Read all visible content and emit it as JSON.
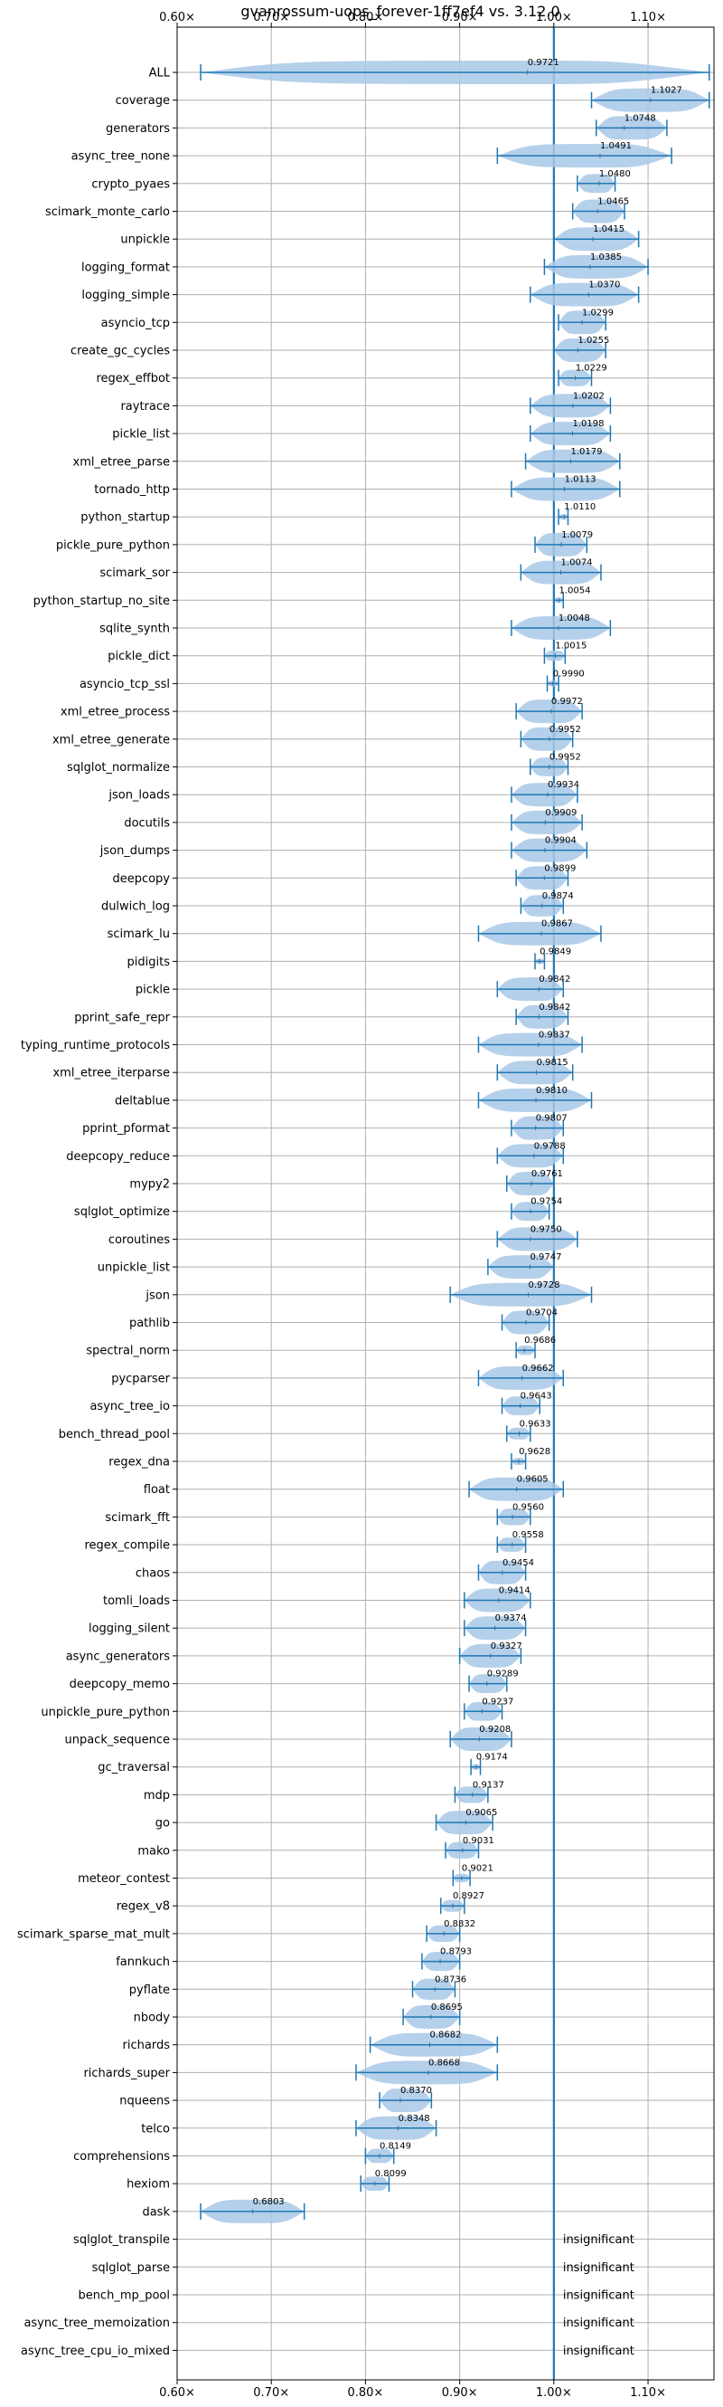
{
  "chart_data": {
    "type": "violin",
    "title": "gvanrossum-uops_forever-1ff7ef4 vs. 3.12.0",
    "xlim": [
      0.6,
      1.17
    ],
    "x_ticks": [
      {
        "value": 0.6,
        "label": "0.60×"
      },
      {
        "value": 0.7,
        "label": "0.70×"
      },
      {
        "value": 0.8,
        "label": "0.80×"
      },
      {
        "value": 0.9,
        "label": "0.90×"
      },
      {
        "value": 1.0,
        "label": "1.00×"
      },
      {
        "value": 1.1,
        "label": "1.10×"
      }
    ],
    "reference_line": 1.0,
    "grid": true,
    "colors": {
      "accent": "#1f77b4",
      "violin_fill": "#a8c8e6",
      "grid": "#b0b0b0"
    },
    "benchmarks": [
      {
        "name": "ALL",
        "value": 0.9721,
        "label": "0.9721",
        "min": 0.625,
        "max": 1.165
      },
      {
        "name": "coverage",
        "value": 1.1027,
        "label": "1.1027",
        "min": 1.04,
        "max": 1.165
      },
      {
        "name": "generators",
        "value": 1.0748,
        "label": "1.0748",
        "min": 1.045,
        "max": 1.12
      },
      {
        "name": "async_tree_none",
        "value": 1.0491,
        "label": "1.0491",
        "min": 0.94,
        "max": 1.125
      },
      {
        "name": "crypto_pyaes",
        "value": 1.048,
        "label": "1.0480",
        "min": 1.025,
        "max": 1.065
      },
      {
        "name": "scimark_monte_carlo",
        "value": 1.0465,
        "label": "1.0465",
        "min": 1.02,
        "max": 1.075
      },
      {
        "name": "unpickle",
        "value": 1.0415,
        "label": "1.0415",
        "min": 1.0,
        "max": 1.09
      },
      {
        "name": "logging_format",
        "value": 1.0385,
        "label": "1.0385",
        "min": 0.99,
        "max": 1.1
      },
      {
        "name": "logging_simple",
        "value": 1.037,
        "label": "1.0370",
        "min": 0.975,
        "max": 1.09
      },
      {
        "name": "asyncio_tcp",
        "value": 1.0299,
        "label": "1.0299",
        "min": 1.005,
        "max": 1.055
      },
      {
        "name": "create_gc_cycles",
        "value": 1.0255,
        "label": "1.0255",
        "min": 1.0,
        "max": 1.055
      },
      {
        "name": "regex_effbot",
        "value": 1.0229,
        "label": "1.0229",
        "min": 1.005,
        "max": 1.04
      },
      {
        "name": "raytrace",
        "value": 1.0202,
        "label": "1.0202",
        "min": 0.975,
        "max": 1.06
      },
      {
        "name": "pickle_list",
        "value": 1.0198,
        "label": "1.0198",
        "min": 0.975,
        "max": 1.06
      },
      {
        "name": "xml_etree_parse",
        "value": 1.0179,
        "label": "1.0179",
        "min": 0.97,
        "max": 1.07
      },
      {
        "name": "tornado_http",
        "value": 1.0113,
        "label": "1.0113",
        "min": 0.955,
        "max": 1.07
      },
      {
        "name": "python_startup",
        "value": 1.011,
        "label": "1.0110",
        "min": 1.005,
        "max": 1.015
      },
      {
        "name": "pickle_pure_python",
        "value": 1.0079,
        "label": "1.0079",
        "min": 0.98,
        "max": 1.035
      },
      {
        "name": "scimark_sor",
        "value": 1.0074,
        "label": "1.0074",
        "min": 0.965,
        "max": 1.05
      },
      {
        "name": "python_startup_no_site",
        "value": 1.0054,
        "label": "1.0054",
        "min": 1.0,
        "max": 1.01
      },
      {
        "name": "sqlite_synth",
        "value": 1.0048,
        "label": "1.0048",
        "min": 0.955,
        "max": 1.06
      },
      {
        "name": "pickle_dict",
        "value": 1.0015,
        "label": "1.0015",
        "min": 0.99,
        "max": 1.012
      },
      {
        "name": "asyncio_tcp_ssl",
        "value": 0.999,
        "label": "0.9990",
        "min": 0.993,
        "max": 1.005
      },
      {
        "name": "xml_etree_process",
        "value": 0.9972,
        "label": "0.9972",
        "min": 0.96,
        "max": 1.03
      },
      {
        "name": "xml_etree_generate",
        "value": 0.9952,
        "label": "0.9952",
        "min": 0.965,
        "max": 1.02
      },
      {
        "name": "sqlglot_normalize",
        "value": 0.9952,
        "label": "0.9952",
        "min": 0.975,
        "max": 1.015
      },
      {
        "name": "json_loads",
        "value": 0.9934,
        "label": "0.9934",
        "min": 0.955,
        "max": 1.025
      },
      {
        "name": "docutils",
        "value": 0.9909,
        "label": "0.9909",
        "min": 0.955,
        "max": 1.03
      },
      {
        "name": "json_dumps",
        "value": 0.9904,
        "label": "0.9904",
        "min": 0.955,
        "max": 1.035
      },
      {
        "name": "deepcopy",
        "value": 0.9899,
        "label": "0.9899",
        "min": 0.96,
        "max": 1.015
      },
      {
        "name": "dulwich_log",
        "value": 0.9874,
        "label": "0.9874",
        "min": 0.965,
        "max": 1.01
      },
      {
        "name": "scimark_lu",
        "value": 0.9867,
        "label": "0.9867",
        "min": 0.92,
        "max": 1.05
      },
      {
        "name": "pidigits",
        "value": 0.9849,
        "label": "0.9849",
        "min": 0.98,
        "max": 0.99
      },
      {
        "name": "pickle",
        "value": 0.9842,
        "label": "0.9842",
        "min": 0.94,
        "max": 1.01
      },
      {
        "name": "pprint_safe_repr",
        "value": 0.9842,
        "label": "0.9842",
        "min": 0.96,
        "max": 1.015
      },
      {
        "name": "typing_runtime_protocols",
        "value": 0.9837,
        "label": "0.9837",
        "min": 0.92,
        "max": 1.03
      },
      {
        "name": "xml_etree_iterparse",
        "value": 0.9815,
        "label": "0.9815",
        "min": 0.94,
        "max": 1.02
      },
      {
        "name": "deltablue",
        "value": 0.981,
        "label": "0.9810",
        "min": 0.92,
        "max": 1.04
      },
      {
        "name": "pprint_pformat",
        "value": 0.9807,
        "label": "0.9807",
        "min": 0.955,
        "max": 1.01
      },
      {
        "name": "deepcopy_reduce",
        "value": 0.9788,
        "label": "0.9788",
        "min": 0.94,
        "max": 1.01
      },
      {
        "name": "mypy2",
        "value": 0.9761,
        "label": "0.9761",
        "min": 0.95,
        "max": 1.0
      },
      {
        "name": "sqlglot_optimize",
        "value": 0.9754,
        "label": "0.9754",
        "min": 0.955,
        "max": 0.995
      },
      {
        "name": "coroutines",
        "value": 0.975,
        "label": "0.9750",
        "min": 0.94,
        "max": 1.025
      },
      {
        "name": "unpickle_list",
        "value": 0.9747,
        "label": "0.9747",
        "min": 0.93,
        "max": 1.0
      },
      {
        "name": "json",
        "value": 0.9728,
        "label": "0.9728",
        "min": 0.89,
        "max": 1.04
      },
      {
        "name": "pathlib",
        "value": 0.9704,
        "label": "0.9704",
        "min": 0.945,
        "max": 0.995
      },
      {
        "name": "spectral_norm",
        "value": 0.9686,
        "label": "0.9686",
        "min": 0.96,
        "max": 0.98
      },
      {
        "name": "pycparser",
        "value": 0.9662,
        "label": "0.9662",
        "min": 0.92,
        "max": 1.01
      },
      {
        "name": "async_tree_io",
        "value": 0.9643,
        "label": "0.9643",
        "min": 0.945,
        "max": 0.985
      },
      {
        "name": "bench_thread_pool",
        "value": 0.9633,
        "label": "0.9633",
        "min": 0.95,
        "max": 0.975
      },
      {
        "name": "regex_dna",
        "value": 0.9628,
        "label": "0.9628",
        "min": 0.955,
        "max": 0.97
      },
      {
        "name": "float",
        "value": 0.9605,
        "label": "0.9605",
        "min": 0.91,
        "max": 1.01
      },
      {
        "name": "scimark_fft",
        "value": 0.956,
        "label": "0.9560",
        "min": 0.94,
        "max": 0.975
      },
      {
        "name": "regex_compile",
        "value": 0.9558,
        "label": "0.9558",
        "min": 0.94,
        "max": 0.97
      },
      {
        "name": "chaos",
        "value": 0.9454,
        "label": "0.9454",
        "min": 0.92,
        "max": 0.97
      },
      {
        "name": "tomli_loads",
        "value": 0.9414,
        "label": "0.9414",
        "min": 0.905,
        "max": 0.975
      },
      {
        "name": "logging_silent",
        "value": 0.9374,
        "label": "0.9374",
        "min": 0.905,
        "max": 0.97
      },
      {
        "name": "async_generators",
        "value": 0.9327,
        "label": "0.9327",
        "min": 0.9,
        "max": 0.965
      },
      {
        "name": "deepcopy_memo",
        "value": 0.9289,
        "label": "0.9289",
        "min": 0.91,
        "max": 0.95
      },
      {
        "name": "unpickle_pure_python",
        "value": 0.9237,
        "label": "0.9237",
        "min": 0.905,
        "max": 0.945
      },
      {
        "name": "unpack_sequence",
        "value": 0.9208,
        "label": "0.9208",
        "min": 0.89,
        "max": 0.955
      },
      {
        "name": "gc_traversal",
        "value": 0.9174,
        "label": "0.9174",
        "min": 0.912,
        "max": 0.922
      },
      {
        "name": "mdp",
        "value": 0.9137,
        "label": "0.9137",
        "min": 0.895,
        "max": 0.93
      },
      {
        "name": "go",
        "value": 0.9065,
        "label": "0.9065",
        "min": 0.875,
        "max": 0.935
      },
      {
        "name": "mako",
        "value": 0.9031,
        "label": "0.9031",
        "min": 0.885,
        "max": 0.92
      },
      {
        "name": "meteor_contest",
        "value": 0.9021,
        "label": "0.9021",
        "min": 0.893,
        "max": 0.911
      },
      {
        "name": "regex_v8",
        "value": 0.8927,
        "label": "0.8927",
        "min": 0.88,
        "max": 0.905
      },
      {
        "name": "scimark_sparse_mat_mult",
        "value": 0.8832,
        "label": "0.8832",
        "min": 0.865,
        "max": 0.9
      },
      {
        "name": "fannkuch",
        "value": 0.8793,
        "label": "0.8793",
        "min": 0.86,
        "max": 0.9
      },
      {
        "name": "pyflate",
        "value": 0.8736,
        "label": "0.8736",
        "min": 0.85,
        "max": 0.895
      },
      {
        "name": "nbody",
        "value": 0.8695,
        "label": "0.8695",
        "min": 0.84,
        "max": 0.9
      },
      {
        "name": "richards",
        "value": 0.8682,
        "label": "0.8682",
        "min": 0.805,
        "max": 0.94
      },
      {
        "name": "richards_super",
        "value": 0.8668,
        "label": "0.8668",
        "min": 0.79,
        "max": 0.94
      },
      {
        "name": "nqueens",
        "value": 0.837,
        "label": "0.8370",
        "min": 0.815,
        "max": 0.87
      },
      {
        "name": "telco",
        "value": 0.8348,
        "label": "0.8348",
        "min": 0.79,
        "max": 0.875
      },
      {
        "name": "comprehensions",
        "value": 0.8149,
        "label": "0.8149",
        "min": 0.8,
        "max": 0.83
      },
      {
        "name": "hexiom",
        "value": 0.8099,
        "label": "0.8099",
        "min": 0.795,
        "max": 0.825
      },
      {
        "name": "dask",
        "value": 0.6803,
        "label": "0.6803",
        "min": 0.625,
        "max": 0.735
      },
      {
        "name": "sqlglot_transpile",
        "insignificant": true,
        "label": "insignificant"
      },
      {
        "name": "sqlglot_parse",
        "insignificant": true,
        "label": "insignificant"
      },
      {
        "name": "bench_mp_pool",
        "insignificant": true,
        "label": "insignificant"
      },
      {
        "name": "async_tree_memoization",
        "insignificant": true,
        "label": "insignificant"
      },
      {
        "name": "async_tree_cpu_io_mixed",
        "insignificant": true,
        "label": "insignificant"
      }
    ]
  }
}
